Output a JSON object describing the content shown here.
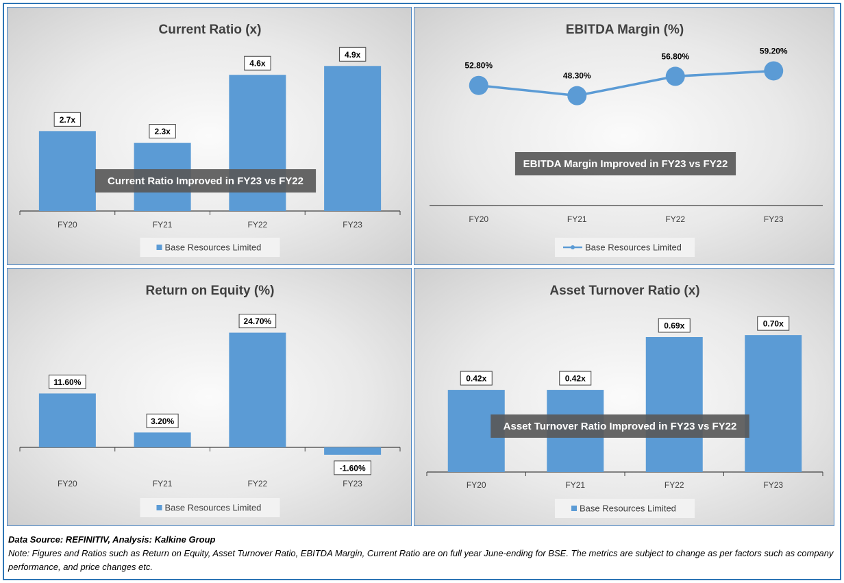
{
  "footer": {
    "source": "Data Source: REFINITIV, Analysis: Kalkine Group",
    "note": "Note: Figures and Ratios such as Return on Equity, Asset Turnover Ratio, EBITDA Margin, Current Ratio are on full year June-ending for BSE. The metrics are subject to change as per factors such as company performance, and price changes etc."
  },
  "colors": {
    "bar": "#5b9bd5",
    "annotation_bg": "#595959",
    "border": "#4a86c5"
  },
  "chart_data": [
    {
      "type": "bar",
      "title": "Current Ratio (x)",
      "categories": [
        "FY20",
        "FY21",
        "FY22",
        "FY23"
      ],
      "series": [
        {
          "name": "Base Resources Limited",
          "values": [
            2.7,
            2.3,
            4.6,
            4.9
          ]
        }
      ],
      "data_labels": [
        "2.7x",
        "2.3x",
        "4.6x",
        "4.9x"
      ],
      "annotation": "Current Ratio Improved in FY23 vs FY22",
      "ylim": [
        0,
        5.3
      ],
      "legend": "bottom",
      "grid": false
    },
    {
      "type": "line",
      "title": "EBITDA Margin (%)",
      "categories": [
        "FY20",
        "FY21",
        "FY22",
        "FY23"
      ],
      "series": [
        {
          "name": "Base Resources Limited",
          "values": [
            52.8,
            48.3,
            56.8,
            59.2
          ]
        }
      ],
      "data_labels": [
        "52.80%",
        "48.30%",
        "56.80%",
        "59.20%"
      ],
      "annotation": "EBITDA Margin Improved in FY23 vs FY22",
      "ylim": [
        0,
        75
      ],
      "legend": "bottom",
      "grid": false
    },
    {
      "type": "bar",
      "title": "Return on Equity (%)",
      "categories": [
        "FY20",
        "FY21",
        "FY22",
        "FY23"
      ],
      "series": [
        {
          "name": "Base Resources Limited",
          "values": [
            11.6,
            3.2,
            24.7,
            -1.6
          ]
        }
      ],
      "data_labels": [
        "11.60%",
        "3.20%",
        "24.70%",
        "-1.60%"
      ],
      "annotation": "",
      "ylim": [
        -4,
        27
      ],
      "legend": "bottom",
      "grid": false
    },
    {
      "type": "bar",
      "title": "Asset Turnover Ratio (x)",
      "categories": [
        "FY20",
        "FY21",
        "FY22",
        "FY23"
      ],
      "series": [
        {
          "name": "Base Resources Limited",
          "values": [
            0.42,
            0.42,
            0.69,
            0.7
          ]
        }
      ],
      "data_labels": [
        "0.42x",
        "0.42x",
        "0.69x",
        "0.70x"
      ],
      "annotation": "Asset Turnover Ratio Improved in FY23 vs FY22",
      "ylim": [
        0,
        0.76
      ],
      "legend": "bottom",
      "grid": false
    }
  ]
}
